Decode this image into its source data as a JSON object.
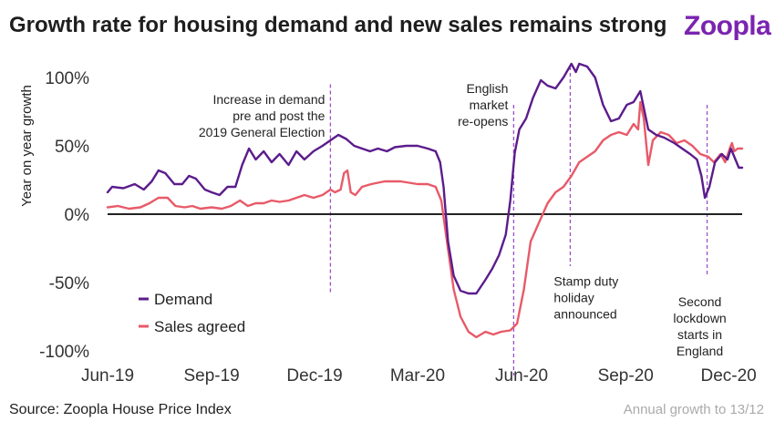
{
  "header": {
    "title": "Growth rate for housing demand and new sales remains strong",
    "logo": "Zoopla"
  },
  "footer": {
    "source": "Source: Zoopla House Price Index",
    "note": "Annual growth to 13/12"
  },
  "colors": {
    "demand": "#5b1c8c",
    "sales": "#e85a68",
    "event_line": "#9b4fc9",
    "zero_line": "#222222"
  },
  "chart_data": {
    "type": "line",
    "title": "Growth rate for housing demand and new sales remains strong",
    "xlabel": "",
    "ylabel": "Year on year growth",
    "xlim": [
      "2019-06-01",
      "2020-12-13"
    ],
    "ylim": [
      -100,
      100
    ],
    "grid": false,
    "legend_position": "bottom-left",
    "x_ticks": [
      {
        "date": "2019-06-01",
        "label": "Jun-19"
      },
      {
        "date": "2019-09-01",
        "label": "Sep-19"
      },
      {
        "date": "2019-12-01",
        "label": "Dec-19"
      },
      {
        "date": "2020-03-01",
        "label": "Mar-20"
      },
      {
        "date": "2020-06-01",
        "label": "Jun-20"
      },
      {
        "date": "2020-09-01",
        "label": "Sep-20"
      },
      {
        "date": "2020-12-01",
        "label": "Dec-20"
      }
    ],
    "y_ticks": [
      {
        "value": 100,
        "label": "100%"
      },
      {
        "value": 50,
        "label": "50%"
      },
      {
        "value": 0,
        "label": "0%"
      },
      {
        "value": -50,
        "label": "-50%"
      },
      {
        "value": -100,
        "label": "-100%"
      }
    ],
    "series": [
      {
        "name": "Demand",
        "color": "#5b1c8c",
        "points": [
          [
            "2019-06-01",
            16
          ],
          [
            "2019-06-05",
            20
          ],
          [
            "2019-06-15",
            19
          ],
          [
            "2019-06-25",
            22
          ],
          [
            "2019-07-03",
            18
          ],
          [
            "2019-07-10",
            24
          ],
          [
            "2019-07-16",
            32
          ],
          [
            "2019-07-22",
            30
          ],
          [
            "2019-07-30",
            22
          ],
          [
            "2019-08-06",
            22
          ],
          [
            "2019-08-12",
            28
          ],
          [
            "2019-08-18",
            26
          ],
          [
            "2019-08-26",
            18
          ],
          [
            "2019-09-01",
            16
          ],
          [
            "2019-09-08",
            14
          ],
          [
            "2019-09-15",
            20
          ],
          [
            "2019-09-22",
            20
          ],
          [
            "2019-09-28",
            36
          ],
          [
            "2019-10-04",
            48
          ],
          [
            "2019-10-10",
            40
          ],
          [
            "2019-10-17",
            46
          ],
          [
            "2019-10-24",
            38
          ],
          [
            "2019-10-31",
            44
          ],
          [
            "2019-11-08",
            36
          ],
          [
            "2019-11-15",
            46
          ],
          [
            "2019-11-22",
            40
          ],
          [
            "2019-11-30",
            46
          ],
          [
            "2019-12-08",
            50
          ],
          [
            "2019-12-15",
            54
          ],
          [
            "2019-12-22",
            58
          ],
          [
            "2019-12-29",
            55
          ],
          [
            "2020-01-05",
            50
          ],
          [
            "2020-01-12",
            48
          ],
          [
            "2020-01-19",
            46
          ],
          [
            "2020-01-26",
            48
          ],
          [
            "2020-02-03",
            46
          ],
          [
            "2020-02-10",
            49
          ],
          [
            "2020-02-20",
            50
          ],
          [
            "2020-03-01",
            50
          ],
          [
            "2020-03-10",
            48
          ],
          [
            "2020-03-17",
            46
          ],
          [
            "2020-03-21",
            38
          ],
          [
            "2020-03-24",
            20
          ],
          [
            "2020-03-28",
            -20
          ],
          [
            "2020-04-02",
            -45
          ],
          [
            "2020-04-08",
            -56
          ],
          [
            "2020-04-15",
            -58
          ],
          [
            "2020-04-22",
            -58
          ],
          [
            "2020-04-30",
            -48
          ],
          [
            "2020-05-06",
            -40
          ],
          [
            "2020-05-12",
            -30
          ],
          [
            "2020-05-18",
            -15
          ],
          [
            "2020-05-22",
            10
          ],
          [
            "2020-05-26",
            45
          ],
          [
            "2020-05-30",
            62
          ],
          [
            "2020-06-05",
            70
          ],
          [
            "2020-06-11",
            85
          ],
          [
            "2020-06-18",
            98
          ],
          [
            "2020-06-24",
            94
          ],
          [
            "2020-07-01",
            92
          ],
          [
            "2020-07-08",
            100
          ],
          [
            "2020-07-15",
            110
          ],
          [
            "2020-07-19",
            104
          ],
          [
            "2020-07-22",
            110
          ],
          [
            "2020-07-29",
            108
          ],
          [
            "2020-08-05",
            100
          ],
          [
            "2020-08-12",
            80
          ],
          [
            "2020-08-19",
            68
          ],
          [
            "2020-08-26",
            70
          ],
          [
            "2020-09-02",
            80
          ],
          [
            "2020-09-08",
            82
          ],
          [
            "2020-09-14",
            90
          ],
          [
            "2020-09-21",
            62
          ],
          [
            "2020-09-28",
            58
          ],
          [
            "2020-10-05",
            56
          ],
          [
            "2020-10-14",
            52
          ],
          [
            "2020-10-21",
            48
          ],
          [
            "2020-10-28",
            44
          ],
          [
            "2020-11-03",
            40
          ],
          [
            "2020-11-07",
            28
          ],
          [
            "2020-11-10",
            12
          ],
          [
            "2020-11-14",
            20
          ],
          [
            "2020-11-19",
            38
          ],
          [
            "2020-11-25",
            44
          ],
          [
            "2020-11-30",
            40
          ],
          [
            "2020-12-03",
            48
          ],
          [
            "2020-12-07",
            40
          ],
          [
            "2020-12-10",
            34
          ],
          [
            "2020-12-13",
            34
          ]
        ]
      },
      {
        "name": "Sales agreed",
        "color": "#e85a68",
        "points": [
          [
            "2019-06-01",
            5
          ],
          [
            "2019-06-10",
            6
          ],
          [
            "2019-06-20",
            4
          ],
          [
            "2019-06-30",
            5
          ],
          [
            "2019-07-08",
            8
          ],
          [
            "2019-07-16",
            12
          ],
          [
            "2019-07-24",
            12
          ],
          [
            "2019-07-31",
            6
          ],
          [
            "2019-08-08",
            5
          ],
          [
            "2019-08-15",
            6
          ],
          [
            "2019-08-22",
            4
          ],
          [
            "2019-09-01",
            5
          ],
          [
            "2019-09-10",
            4
          ],
          [
            "2019-09-18",
            6
          ],
          [
            "2019-09-26",
            10
          ],
          [
            "2019-10-03",
            6
          ],
          [
            "2019-10-10",
            8
          ],
          [
            "2019-10-17",
            8
          ],
          [
            "2019-10-24",
            10
          ],
          [
            "2019-10-31",
            9
          ],
          [
            "2019-11-08",
            10
          ],
          [
            "2019-11-15",
            12
          ],
          [
            "2019-11-22",
            14
          ],
          [
            "2019-11-30",
            12
          ],
          [
            "2019-12-08",
            14
          ],
          [
            "2019-12-15",
            18
          ],
          [
            "2019-12-19",
            16
          ],
          [
            "2019-12-24",
            18
          ],
          [
            "2019-12-27",
            30
          ],
          [
            "2019-12-30",
            32
          ],
          [
            "2020-01-02",
            16
          ],
          [
            "2020-01-06",
            14
          ],
          [
            "2020-01-12",
            20
          ],
          [
            "2020-01-20",
            22
          ],
          [
            "2020-02-01",
            24
          ],
          [
            "2020-02-15",
            24
          ],
          [
            "2020-03-01",
            22
          ],
          [
            "2020-03-10",
            22
          ],
          [
            "2020-03-17",
            20
          ],
          [
            "2020-03-22",
            10
          ],
          [
            "2020-03-27",
            -20
          ],
          [
            "2020-04-02",
            -55
          ],
          [
            "2020-04-08",
            -75
          ],
          [
            "2020-04-15",
            -86
          ],
          [
            "2020-04-22",
            -90
          ],
          [
            "2020-04-30",
            -86
          ],
          [
            "2020-05-07",
            -88
          ],
          [
            "2020-05-14",
            -86
          ],
          [
            "2020-05-22",
            -85
          ],
          [
            "2020-05-28",
            -80
          ],
          [
            "2020-06-03",
            -55
          ],
          [
            "2020-06-09",
            -20
          ],
          [
            "2020-06-17",
            -5
          ],
          [
            "2020-06-24",
            8
          ],
          [
            "2020-07-01",
            16
          ],
          [
            "2020-07-08",
            20
          ],
          [
            "2020-07-15",
            28
          ],
          [
            "2020-07-22",
            38
          ],
          [
            "2020-07-29",
            42
          ],
          [
            "2020-08-05",
            46
          ],
          [
            "2020-08-12",
            54
          ],
          [
            "2020-08-19",
            58
          ],
          [
            "2020-08-26",
            60
          ],
          [
            "2020-09-02",
            58
          ],
          [
            "2020-09-08",
            66
          ],
          [
            "2020-09-12",
            62
          ],
          [
            "2020-09-14",
            82
          ],
          [
            "2020-09-17",
            70
          ],
          [
            "2020-09-21",
            36
          ],
          [
            "2020-09-25",
            54
          ],
          [
            "2020-10-02",
            60
          ],
          [
            "2020-10-09",
            58
          ],
          [
            "2020-10-16",
            52
          ],
          [
            "2020-10-23",
            54
          ],
          [
            "2020-10-30",
            50
          ],
          [
            "2020-11-06",
            44
          ],
          [
            "2020-11-13",
            42
          ],
          [
            "2020-11-18",
            38
          ],
          [
            "2020-11-24",
            44
          ],
          [
            "2020-11-28",
            38
          ],
          [
            "2020-12-02",
            48
          ],
          [
            "2020-12-04",
            52
          ],
          [
            "2020-12-06",
            46
          ],
          [
            "2020-12-09",
            48
          ],
          [
            "2020-12-13",
            48
          ]
        ]
      }
    ],
    "annotations": [
      {
        "date": "2019-12-15",
        "ymin": -58,
        "ymax": 95,
        "lines": [
          "Increase in demand",
          "pre and post the",
          "2019 General Election"
        ],
        "anchor": "end",
        "label_y": 90
      },
      {
        "date": "2020-05-25",
        "ymin": -118,
        "ymax": 80,
        "lines": [
          "English",
          "market",
          "re-opens"
        ],
        "anchor": "end",
        "label_y": 98
      },
      {
        "date": "2020-07-14",
        "ymin": -38,
        "ymax": 108,
        "lines": [
          "Stamp duty",
          "holiday",
          "announced"
        ],
        "anchor": "start",
        "label_y": -43
      },
      {
        "date": "2020-11-12",
        "ymin": -45,
        "ymax": 80,
        "lines": [
          "Second",
          "lockdown",
          "starts in",
          "England"
        ],
        "anchor": "center",
        "label_y": -58
      }
    ]
  }
}
